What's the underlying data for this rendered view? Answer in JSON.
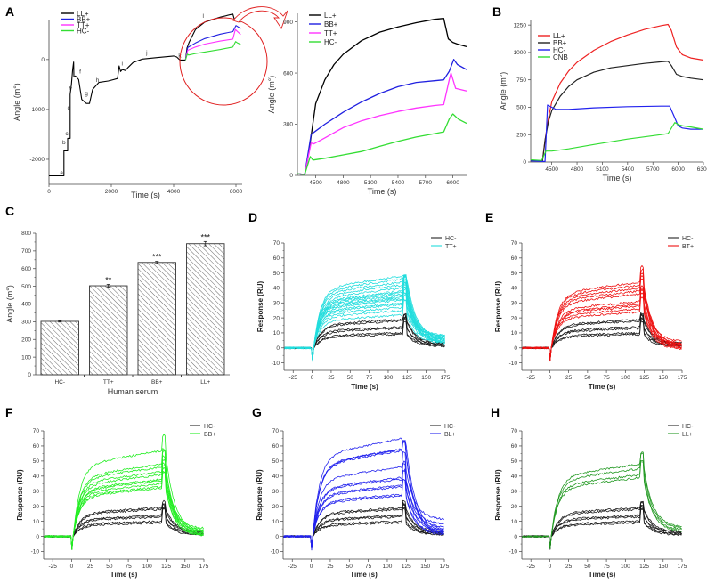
{
  "figure": {
    "panel_labels": [
      "A",
      "B",
      "C",
      "D",
      "E",
      "F",
      "G",
      "H"
    ]
  },
  "chart_data": [
    {
      "id": "A",
      "type": "line",
      "title": "",
      "xlabel": "Time (s)",
      "ylabel": "Angle (m°)",
      "xlim": [
        0,
        6200
      ],
      "ylim": [
        -2500,
        800
      ],
      "xticks": [
        0,
        2000,
        4000,
        6000
      ],
      "yticks": [
        -2000,
        -1000,
        0
      ],
      "legend": {
        "placement": "top-left",
        "entries": [
          {
            "name": "LL+",
            "color": "#000000"
          },
          {
            "name": "BB+",
            "color": "#2020e0"
          },
          {
            "name": "TT+",
            "color": "#ff33ff"
          },
          {
            "name": "HC-",
            "color": "#33dd33"
          }
        ]
      },
      "annotation": "zoom circle with arrow pointing to inset",
      "series": [
        {
          "name": "baseline",
          "color": "#000000",
          "x": [
            0,
            480,
            480,
            600,
            600,
            680,
            680,
            720,
            760,
            790,
            800,
            850,
            950,
            1050,
            1200,
            1300,
            1400,
            1600,
            1900,
            2200,
            2250,
            2300,
            2350,
            2450,
            2550,
            2700,
            3000,
            3500,
            4000,
            4100,
            4200,
            4380
          ],
          "y": [
            -2330,
            -2330,
            -1830,
            -1830,
            -1580,
            -1580,
            -700,
            -500,
            -200,
            -50,
            -350,
            -330,
            -400,
            -800,
            -880,
            -880,
            -600,
            -460,
            -430,
            -380,
            -130,
            -240,
            -200,
            -220,
            -150,
            -60,
            10,
            40,
            70,
            50,
            -10,
            -10
          ]
        },
        {
          "name": "LL+",
          "color": "#000000",
          "x": [
            4380,
            4430,
            4500,
            4700,
            5000,
            5500,
            5900,
            5950,
            6000,
            6150
          ],
          "y": [
            -10,
            230,
            350,
            600,
            750,
            850,
            910,
            800,
            770,
            750
          ]
        },
        {
          "name": "BB+",
          "color": "#2020e0",
          "x": [
            4380,
            4450,
            4700,
            5000,
            5500,
            5900,
            6000,
            6150
          ],
          "y": [
            -10,
            240,
            330,
            420,
            510,
            560,
            680,
            620
          ]
        },
        {
          "name": "TT+",
          "color": "#ff33ff",
          "x": [
            4380,
            4450,
            4700,
            5000,
            5500,
            5900,
            5980,
            6150
          ],
          "y": [
            -10,
            185,
            250,
            310,
            370,
            410,
            600,
            500
          ]
        },
        {
          "name": "HC-",
          "color": "#33dd33",
          "x": [
            4380,
            4440,
            4480,
            4700,
            5000,
            5500,
            5900,
            5990,
            6050,
            6150
          ],
          "y": [
            -10,
            110,
            90,
            120,
            150,
            200,
            250,
            360,
            330,
            300
          ]
        }
      ],
      "step_labels": [
        "a",
        "b",
        "c",
        "d",
        "e",
        "f",
        "g",
        "h",
        "i",
        "j",
        "k",
        "l"
      ]
    },
    {
      "id": "A-inset",
      "type": "line",
      "xlabel": "Time (s)",
      "ylabel": "Angle (m°)",
      "xlim": [
        4300,
        6150
      ],
      "ylim": [
        0,
        950
      ],
      "xticks": [
        4500,
        4800,
        5100,
        5400,
        5700,
        6000
      ],
      "yticks": [
        0,
        300,
        600,
        900
      ],
      "legend": {
        "placement": "top-left",
        "entries": [
          {
            "name": "LL+",
            "color": "#000000"
          },
          {
            "name": "BB+",
            "color": "#2020e0"
          },
          {
            "name": "TT+",
            "color": "#ff33ff"
          },
          {
            "name": "HC-",
            "color": "#33dd33"
          }
        ]
      },
      "series": [
        {
          "name": "LL+",
          "x": [
            4300,
            4380,
            4420,
            4450,
            4500,
            4600,
            4700,
            4800,
            5000,
            5200,
            5400,
            5600,
            5800,
            5900,
            5950,
            6000,
            6050,
            6150
          ],
          "y": [
            10,
            5,
            120,
            230,
            420,
            560,
            650,
            710,
            790,
            840,
            870,
            895,
            915,
            920,
            800,
            780,
            770,
            755
          ]
        },
        {
          "name": "BB+",
          "x": [
            4300,
            4380,
            4450,
            4500,
            4600,
            4800,
            5000,
            5200,
            5400,
            5600,
            5800,
            5900,
            5960,
            6010,
            6050,
            6150
          ],
          "y": [
            10,
            5,
            240,
            260,
            300,
            370,
            430,
            480,
            520,
            545,
            555,
            560,
            610,
            680,
            650,
            620
          ]
        },
        {
          "name": "TT+",
          "x": [
            4300,
            4380,
            4450,
            4480,
            4600,
            4800,
            5000,
            5200,
            5400,
            5600,
            5800,
            5900,
            5960,
            5980,
            6030,
            6150
          ],
          "y": [
            10,
            5,
            190,
            185,
            220,
            280,
            320,
            350,
            375,
            395,
            410,
            415,
            560,
            600,
            510,
            495
          ]
        },
        {
          "name": "HC-",
          "x": [
            4300,
            4380,
            4440,
            4470,
            4600,
            4800,
            5000,
            5200,
            5400,
            5600,
            5800,
            5900,
            5960,
            6000,
            6060,
            6150
          ],
          "y": [
            10,
            5,
            110,
            90,
            100,
            120,
            140,
            170,
            200,
            225,
            245,
            255,
            330,
            360,
            330,
            305
          ]
        }
      ]
    },
    {
      "id": "B",
      "type": "line",
      "xlabel": "Time (s)",
      "ylabel": "Angle (m°)",
      "xlim": [
        4250,
        6300
      ],
      "ylim": [
        0,
        1300
      ],
      "xticks": [
        4500,
        4800,
        5100,
        5400,
        5700,
        6000,
        6300
      ],
      "yticks": [
        0,
        250,
        500,
        750,
        1000,
        1250
      ],
      "legend": {
        "placement": "top-left",
        "entries": [
          {
            "name": "LL+",
            "color": "#ee2222"
          },
          {
            "name": "BB+",
            "color": "#222222"
          },
          {
            "name": "HC-",
            "color": "#2222ee"
          },
          {
            "name": "CNB",
            "color": "#33dd33"
          }
        ]
      },
      "series": [
        {
          "name": "LL+",
          "x": [
            4250,
            4390,
            4420,
            4460,
            4500,
            4600,
            4700,
            4800,
            5000,
            5200,
            5400,
            5600,
            5800,
            5880,
            5920,
            5980,
            6050,
            6150,
            6300
          ],
          "y": [
            10,
            10,
            200,
            400,
            550,
            720,
            830,
            910,
            1020,
            1100,
            1160,
            1210,
            1245,
            1255,
            1200,
            1050,
            980,
            950,
            930
          ]
        },
        {
          "name": "BB+",
          "x": [
            4250,
            4390,
            4420,
            4460,
            4500,
            4600,
            4700,
            4800,
            5000,
            5200,
            5400,
            5600,
            5800,
            5880,
            5920,
            5980,
            6050,
            6150,
            6300
          ],
          "y": [
            15,
            10,
            200,
            370,
            470,
            600,
            690,
            750,
            820,
            860,
            880,
            900,
            915,
            920,
            880,
            800,
            780,
            765,
            750
          ]
        },
        {
          "name": "HC-",
          "x": [
            4250,
            4400,
            4420,
            4450,
            4500,
            4550,
            4700,
            5000,
            5400,
            5800,
            5900,
            5950,
            6000,
            6050,
            6150,
            6300
          ],
          "y": [
            10,
            5,
            5,
            520,
            500,
            480,
            480,
            495,
            505,
            510,
            510,
            420,
            330,
            310,
            300,
            300
          ]
        },
        {
          "name": "CNB",
          "x": [
            4250,
            4360,
            4380,
            4430,
            4500,
            4700,
            5000,
            5400,
            5800,
            5880,
            5960,
            6010,
            6060,
            6150,
            6300
          ],
          "y": [
            20,
            15,
            15,
            100,
            100,
            120,
            160,
            210,
            250,
            260,
            360,
            340,
            330,
            320,
            300
          ]
        }
      ]
    },
    {
      "id": "C",
      "type": "bar",
      "title": "",
      "xlabel": "Human serum",
      "ylabel": "Angle (m°)",
      "ylim": [
        0,
        800
      ],
      "yticks": [
        0,
        100,
        200,
        300,
        400,
        500,
        600,
        700,
        800
      ],
      "categories": [
        "HC-",
        "TT+",
        "BB+",
        "LL+"
      ],
      "values": [
        302,
        503,
        635,
        741
      ],
      "errors": [
        4,
        8,
        6,
        12
      ],
      "significance": [
        "",
        "**",
        "***",
        "***"
      ],
      "pattern": "diagonal-hatch"
    },
    {
      "id": "D",
      "type": "line",
      "xlabel": "Time (s)",
      "ylabel": "Response (RU)",
      "xlim": [
        -37,
        175
      ],
      "ylim": [
        -15,
        70
      ],
      "xticks": [
        -25,
        0,
        25,
        50,
        75,
        100,
        125,
        150,
        175
      ],
      "yticks": [
        -10,
        0,
        10,
        20,
        30,
        40,
        50,
        60,
        70
      ],
      "legend": {
        "placement": "top-right",
        "entries": [
          {
            "name": "HC-",
            "color": "#222222"
          },
          {
            "name": "TT+",
            "color": "#22dddd"
          }
        ]
      },
      "control_plateaus": [
        9,
        10,
        13,
        14,
        18,
        19
      ],
      "sample_plateaus": [
        22,
        25,
        27,
        29,
        30,
        32,
        33,
        34,
        35,
        36,
        37,
        38,
        40,
        42,
        44,
        46,
        48
      ],
      "sample_color": "#22dddd",
      "injection_spike_max": 48,
      "dissociation_end": [
        3,
        4,
        5,
        6,
        7,
        8
      ]
    },
    {
      "id": "E",
      "type": "line",
      "xlabel": "Time (s)",
      "ylabel": "Response (RU)",
      "xlim": [
        -37,
        175
      ],
      "ylim": [
        -15,
        70
      ],
      "xticks": [
        -25,
        0,
        25,
        50,
        75,
        100,
        125,
        150,
        175
      ],
      "yticks": [
        -10,
        0,
        10,
        20,
        30,
        40,
        50,
        60,
        70
      ],
      "legend": {
        "placement": "top-right",
        "entries": [
          {
            "name": "HC-",
            "color": "#222222"
          },
          {
            "name": "BT+",
            "color": "#ee1111"
          }
        ]
      },
      "control_plateaus": [
        9,
        10,
        13,
        14,
        18,
        19
      ],
      "sample_plateaus": [
        24,
        26,
        28,
        29,
        31,
        36,
        38,
        40,
        42,
        44
      ],
      "sample_color": "#ee1111",
      "injection_spike_max": 59,
      "dissociation_end": [
        -1,
        0,
        1,
        2,
        3,
        4
      ]
    },
    {
      "id": "F",
      "type": "line",
      "xlabel": "Time (s)",
      "ylabel": "Response (RU)",
      "xlim": [
        -37,
        175
      ],
      "ylim": [
        -15,
        70
      ],
      "xticks": [
        -25,
        0,
        25,
        50,
        75,
        100,
        125,
        150,
        175
      ],
      "yticks": [
        -10,
        0,
        10,
        20,
        30,
        40,
        50,
        60,
        70
      ],
      "legend": {
        "placement": "top-right",
        "entries": [
          {
            "name": "HC-",
            "color": "#222222"
          },
          {
            "name": "BB+",
            "color": "#22ee22"
          }
        ]
      },
      "control_plateaus": [
        9,
        10,
        13,
        14,
        18,
        19
      ],
      "sample_plateaus": [
        32,
        33,
        35,
        37,
        38,
        41,
        43,
        46,
        48,
        57
      ],
      "sample_color": "#22ee22",
      "injection_spike_max": 70,
      "dissociation_end": [
        0,
        1,
        2,
        3,
        4,
        5
      ]
    },
    {
      "id": "G",
      "type": "line",
      "xlabel": "Time (s)",
      "ylabel": "Response (RU)",
      "xlim": [
        -37,
        175
      ],
      "ylim": [
        -15,
        70
      ],
      "xticks": [
        -25,
        0,
        25,
        50,
        75,
        100,
        125,
        150,
        175
      ],
      "yticks": [
        -10,
        0,
        10,
        20,
        30,
        40,
        50,
        60,
        70
      ],
      "legend": {
        "placement": "top-right",
        "entries": [
          {
            "name": "HC-",
            "color": "#222222"
          },
          {
            "name": "BL+",
            "color": "#2222ee"
          }
        ]
      },
      "control_plateaus": [
        9,
        10,
        13,
        14,
        18,
        19
      ],
      "sample_plateaus": [
        27,
        28,
        33,
        34,
        38,
        39,
        46,
        57,
        58,
        58,
        65
      ],
      "sample_color": "#2222ee",
      "injection_spike_max": 63,
      "dissociation_end": [
        1,
        2,
        3,
        4,
        6,
        8,
        11
      ]
    },
    {
      "id": "H",
      "type": "line",
      "xlabel": "Time (s)",
      "ylabel": "Response (RU)",
      "xlim": [
        -37,
        175
      ],
      "ylim": [
        -15,
        70
      ],
      "xticks": [
        -25,
        0,
        25,
        50,
        75,
        100,
        125,
        150,
        175
      ],
      "yticks": [
        -10,
        0,
        10,
        20,
        30,
        40,
        50,
        60,
        70
      ],
      "legend": {
        "placement": "top-right",
        "entries": [
          {
            "name": "HC-",
            "color": "#222222"
          },
          {
            "name": "LL+",
            "color": "#229922"
          }
        ]
      },
      "control_plateaus": [
        9,
        10,
        13,
        14,
        18,
        19
      ],
      "sample_plateaus": [
        39,
        41,
        45,
        48
      ],
      "sample_color": "#229922",
      "injection_spike_max": 55,
      "dissociation_end": [
        3,
        4,
        5,
        6
      ]
    }
  ]
}
